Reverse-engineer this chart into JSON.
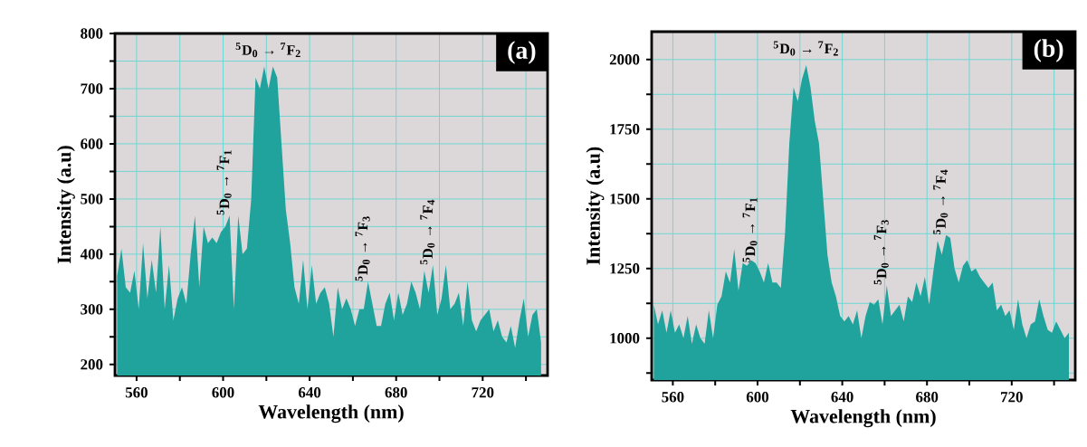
{
  "chart_data": [
    {
      "type": "area",
      "title": "(a)",
      "xlabel": "Wavelength (nm)",
      "ylabel": "Intensity (a.u)",
      "x": [
        551,
        553,
        555,
        557,
        559,
        561,
        563,
        565,
        567,
        569,
        571,
        573,
        575,
        577,
        579,
        581,
        583,
        585,
        587,
        589,
        591,
        593,
        595,
        597,
        599,
        601,
        603,
        605,
        607,
        609,
        611,
        613,
        615,
        617,
        619,
        621,
        623,
        625,
        627,
        629,
        631,
        633,
        635,
        637,
        639,
        641,
        643,
        645,
        647,
        649,
        651,
        653,
        655,
        657,
        659,
        661,
        663,
        665,
        667,
        669,
        671,
        673,
        675,
        677,
        679,
        681,
        683,
        685,
        687,
        689,
        691,
        693,
        695,
        697,
        699,
        701,
        703,
        705,
        707,
        709,
        711,
        713,
        715,
        717,
        719,
        721,
        723,
        725,
        727,
        729,
        731,
        733,
        735,
        737,
        739,
        741,
        743,
        745,
        747
      ],
      "values": [
        360,
        410,
        340,
        330,
        370,
        300,
        420,
        320,
        390,
        330,
        450,
        300,
        380,
        280,
        320,
        340,
        310,
        400,
        470,
        340,
        450,
        420,
        430,
        420,
        440,
        450,
        470,
        300,
        470,
        400,
        410,
        500,
        720,
        700,
        740,
        700,
        740,
        720,
        600,
        480,
        420,
        340,
        310,
        390,
        300,
        380,
        310,
        330,
        340,
        310,
        250,
        340,
        300,
        320,
        300,
        270,
        300,
        300,
        350,
        310,
        270,
        270,
        310,
        330,
        280,
        330,
        290,
        310,
        350,
        330,
        300,
        370,
        330,
        380,
        290,
        320,
        380,
        300,
        310,
        330,
        270,
        350,
        280,
        260,
        280,
        290,
        300,
        260,
        280,
        250,
        240,
        270,
        230,
        280,
        320,
        250,
        290,
        300,
        240
      ],
      "color": "#1fa39c",
      "xlim": [
        550,
        750
      ],
      "ylim": [
        180,
        800
      ],
      "xticks": [
        560,
        {
          "value": 580,
          "label": null
        },
        600,
        {
          "value": 620,
          "label": null
        },
        640,
        {
          "value": 660,
          "label": null
        },
        680,
        {
          "value": 700,
          "label": null
        },
        720,
        {
          "value": 740,
          "label": null
        }
      ],
      "yticks": [
        200,
        {
          "value": 250,
          "label": null
        },
        300,
        {
          "value": 350,
          "label": null
        },
        400,
        {
          "value": 450,
          "label": null
        },
        500,
        {
          "value": 550,
          "label": null
        },
        600,
        {
          "value": 650,
          "label": null
        },
        700,
        {
          "value": 750,
          "label": null
        },
        800
      ],
      "grid": true,
      "annotations": [
        {
          "text": "$^{5}$D$_{0}$ → $^{7}$F$_{2}$",
          "x": 621,
          "y": 740
        },
        {
          "text": "$^{5}$D$_{0}$ → $^{7}$F$_{1}$",
          "x": 603,
          "y": 470
        },
        {
          "text": "$^{5}$D$_{0}$ → $^{7}$F$_{3}$",
          "x": 667,
          "y": 350
        },
        {
          "text": "$^{5}$D$_{0}$ → $^{7}$F$_{4}$",
          "x": 697,
          "y": 380
        }
      ]
    },
    {
      "type": "area",
      "title": "(b)",
      "xlabel": "Wavelength (nm)",
      "ylabel": "Intensity (a.u)",
      "x": [
        551,
        553,
        555,
        557,
        559,
        561,
        563,
        565,
        567,
        569,
        571,
        573,
        575,
        577,
        579,
        581,
        583,
        585,
        587,
        589,
        591,
        593,
        595,
        597,
        599,
        601,
        603,
        605,
        607,
        609,
        611,
        613,
        615,
        617,
        619,
        621,
        623,
        625,
        627,
        629,
        631,
        633,
        635,
        637,
        639,
        641,
        643,
        645,
        647,
        649,
        651,
        653,
        655,
        657,
        659,
        661,
        663,
        665,
        667,
        669,
        671,
        673,
        675,
        677,
        679,
        681,
        683,
        685,
        687,
        689,
        691,
        693,
        695,
        697,
        699,
        701,
        703,
        705,
        707,
        709,
        711,
        713,
        715,
        717,
        719,
        721,
        723,
        725,
        727,
        729,
        731,
        733,
        735,
        737,
        739,
        741,
        743,
        745,
        747
      ],
      "values": [
        1120,
        1050,
        1100,
        1020,
        1100,
        1020,
        1050,
        1000,
        1080,
        980,
        1050,
        1000,
        980,
        1100,
        1000,
        1120,
        1150,
        1240,
        1200,
        1320,
        1170,
        1270,
        1260,
        1280,
        1270,
        1240,
        1200,
        1270,
        1200,
        1200,
        1180,
        1380,
        1700,
        1900,
        1850,
        1930,
        1980,
        1900,
        1780,
        1700,
        1500,
        1300,
        1200,
        1150,
        1080,
        1060,
        1080,
        1050,
        1100,
        1000,
        1080,
        1130,
        1120,
        1140,
        1050,
        1190,
        1080,
        1100,
        1120,
        1060,
        1150,
        1130,
        1200,
        1150,
        1220,
        1120,
        1240,
        1350,
        1300,
        1370,
        1360,
        1250,
        1200,
        1260,
        1280,
        1240,
        1250,
        1220,
        1200,
        1180,
        1200,
        1100,
        1120,
        1080,
        1100,
        1030,
        1140,
        1050,
        1000,
        1050,
        1060,
        1140,
        1080,
        1030,
        1020,
        1060,
        1030,
        1000,
        1020
      ],
      "color": "#1fa39c",
      "xlim": [
        550,
        750
      ],
      "ylim": [
        850,
        2100
      ],
      "xticks": [
        560,
        {
          "value": 580,
          "label": null
        },
        600,
        {
          "value": 620,
          "label": null
        },
        640,
        {
          "value": 660,
          "label": null
        },
        680,
        {
          "value": 700,
          "label": null
        },
        720,
        {
          "value": 740,
          "label": null
        }
      ],
      "yticks": [
        {
          "value": 875,
          "label": null
        },
        1000,
        {
          "value": 1125,
          "label": null
        },
        1250,
        {
          "value": 1375,
          "label": null
        },
        1500,
        {
          "value": 1625,
          "label": null
        },
        1750,
        {
          "value": 1875,
          "label": null
        },
        2000
      ],
      "grid": true,
      "annotations": [
        {
          "text": "$^{5}$D$_{0}$ → $^{7}$F$_{2}$",
          "x": 623,
          "y": 1980
        },
        {
          "text": "$^{5}$D$_{0}$ → $^{7}$F$_{1}$",
          "x": 599,
          "y": 1270
        },
        {
          "text": "$^{5}$D$_{0}$ → $^{7}$F$_{3}$",
          "x": 661,
          "y": 1190
        },
        {
          "text": "$^{5}$D$_{0}$ → $^{7}$F$_{4}$",
          "x": 689,
          "y": 1370
        }
      ]
    }
  ]
}
